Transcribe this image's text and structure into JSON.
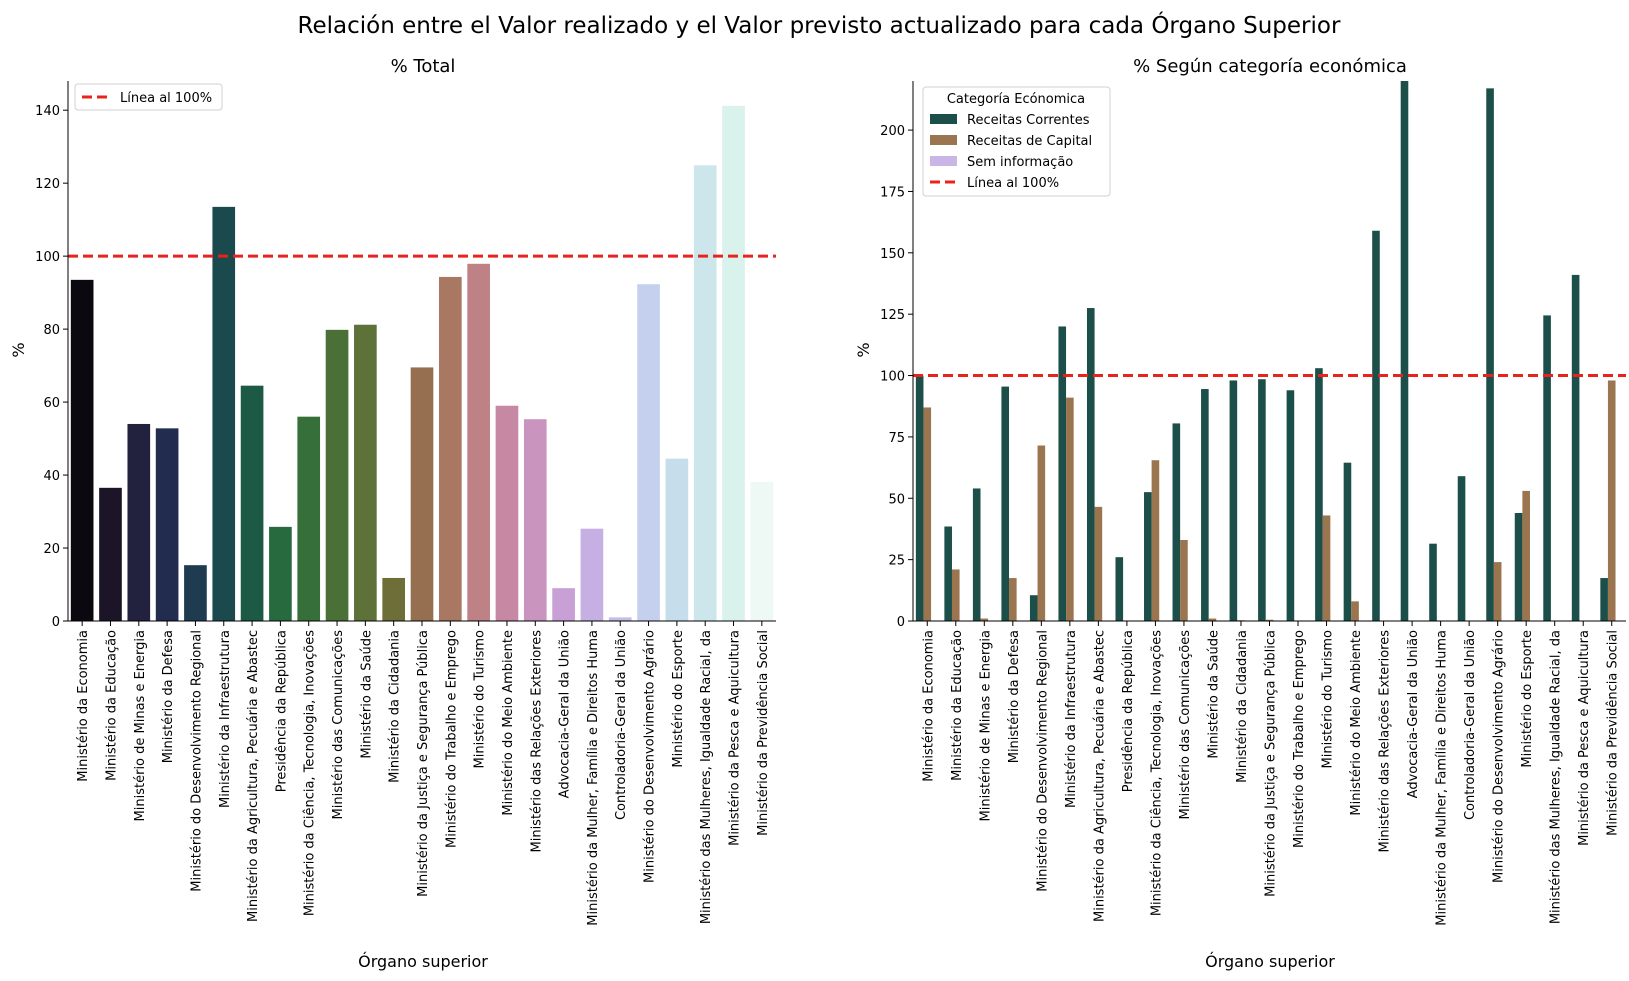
{
  "figure": {
    "suptitle": "Relación entre el Valor realizado y el Valor previsto actualizado para cada Órgano Superior"
  },
  "chart_data": [
    {
      "type": "bar",
      "title": "% Total",
      "xlabel": "Órgano superior",
      "ylabel": "%",
      "ylim": [
        0,
        148
      ],
      "yticks": [
        0,
        20,
        40,
        60,
        80,
        100,
        120,
        140
      ],
      "categories": [
        "Ministério da Economia",
        "Ministério da Educação",
        "Ministério de Minas e Energia",
        "Ministério da Defesa",
        "Ministério do Desenvolvimento Regional",
        "Ministério da Infraestrutura",
        "Ministério da Agricultura, Pecuária e Abastec",
        "Presidência da República",
        "Ministério da Ciência, Tecnologia, Inovações",
        "Ministério das Comunicações",
        "Ministério da Saúde",
        "Ministério da Cidadania",
        "Ministério da Justiça e Segurança Pública",
        "Ministério do Trabalho e Emprego",
        "Ministério do Turismo",
        "Ministério do Meio Ambiente",
        "Ministério das Relações Exteriores",
        "Advocacia-Geral da União",
        "Ministério da Mulher, Família e Direitos Huma",
        "Controladoria-Geral da União",
        "Ministério do Desenvolvimento Agrário",
        "Ministério do Esporte",
        "Ministério das Mulheres, Igualdade Racial, da",
        "Ministério da Pesca e Aquicultura",
        "Ministério da Previdência Social"
      ],
      "values": [
        93.5,
        36.5,
        54,
        52.8,
        15.3,
        113.5,
        64.5,
        25.8,
        56,
        79.8,
        81.2,
        11.8,
        69.5,
        94.3,
        97.9,
        59,
        55.3,
        9,
        25.3,
        1,
        92.3,
        44.5,
        124.9,
        141.2,
        38.1
      ],
      "colors": [
        "#0c0810",
        "#1c1528",
        "#22213e",
        "#212c4f",
        "#1e3b50",
        "#1b4a4e",
        "#1d5a45",
        "#276a3e",
        "#366f3a",
        "#4a6f37",
        "#5e7139",
        "#6e6e38",
        "#956f4f",
        "#a87863",
        "#bd8186",
        "#c688a2",
        "#c994be",
        "#c9a0d6",
        "#c6b0e3",
        "#c4bde9",
        "#c4d0ee",
        "#c6deec",
        "#cde6eb",
        "#daf2ec",
        "#eef8f4"
      ],
      "reference_line": {
        "value": 100,
        "color": "#e8231c",
        "label": "Línea al 100%"
      },
      "legend": "top-left",
      "grid": false
    },
    {
      "type": "bar",
      "title": "% Según categoría económica",
      "xlabel": "Órgano superior",
      "ylabel": "%",
      "ylim": [
        0,
        220
      ],
      "yticks": [
        0,
        25,
        50,
        75,
        100,
        125,
        150,
        175,
        200
      ],
      "categories": [
        "Ministério da Economia",
        "Ministério da Educação",
        "Ministério de Minas e Energia",
        "Ministério da Defesa",
        "Ministério do Desenvolvimento Regional",
        "Ministério da Infraestrutura",
        "Ministério da Agricultura, Pecuária e Abastec",
        "Presidência da República",
        "Ministério da Ciência, Tecnologia, Inovações",
        "Ministério das Comunicações",
        "Ministério da Saúde",
        "Ministério da Cidadania",
        "Ministério da Justiça e Segurança Pública",
        "Ministério do Trabalho e Emprego",
        "Ministério do Turismo",
        "Ministério do Meio Ambiente",
        "Ministério das Relações Exteriores",
        "Advocacia-Geral da União",
        "Ministério da Mulher, Família e Direitos Huma",
        "Controladoria-Geral da União",
        "Ministério do Desenvolvimento Agrário",
        "Ministério do Esporte",
        "Ministério das Mulheres, Igualdade Racial, da",
        "Ministério da Pesca e Aquicultura",
        "Ministério da Previdência Social"
      ],
      "series": [
        {
          "name": "Receitas Correntes",
          "color": "#1d4f4a",
          "values": [
            100,
            38.5,
            54,
            95.5,
            10.5,
            120,
            127.5,
            26,
            52.5,
            80.5,
            94.5,
            98,
            98.5,
            94,
            103,
            64.5,
            159,
            220,
            31.5,
            59,
            217,
            44,
            124.5,
            141,
            17.5
          ]
        },
        {
          "name": "Receitas de Capital",
          "color": "#9a7550",
          "values": [
            87,
            21,
            1,
            17.5,
            71.5,
            91,
            46.5,
            0,
            65.5,
            33,
            1,
            0.3,
            0.5,
            0,
            43,
            8,
            0,
            0,
            0,
            0,
            24,
            53,
            0,
            0,
            98
          ]
        },
        {
          "name": "Sem informação",
          "color": "#c9b6e6",
          "values": [
            0,
            0,
            0,
            0,
            0,
            0,
            0,
            0,
            0,
            0,
            0,
            0,
            0,
            0,
            0,
            0,
            0,
            0,
            0,
            0,
            0,
            0,
            0,
            0,
            0
          ]
        }
      ],
      "reference_line": {
        "value": 100,
        "color": "#e8231c",
        "label": "Línea al 100%"
      },
      "legend_title": "Categoría Ecónomica",
      "legend": "top-left",
      "grid": false
    }
  ]
}
